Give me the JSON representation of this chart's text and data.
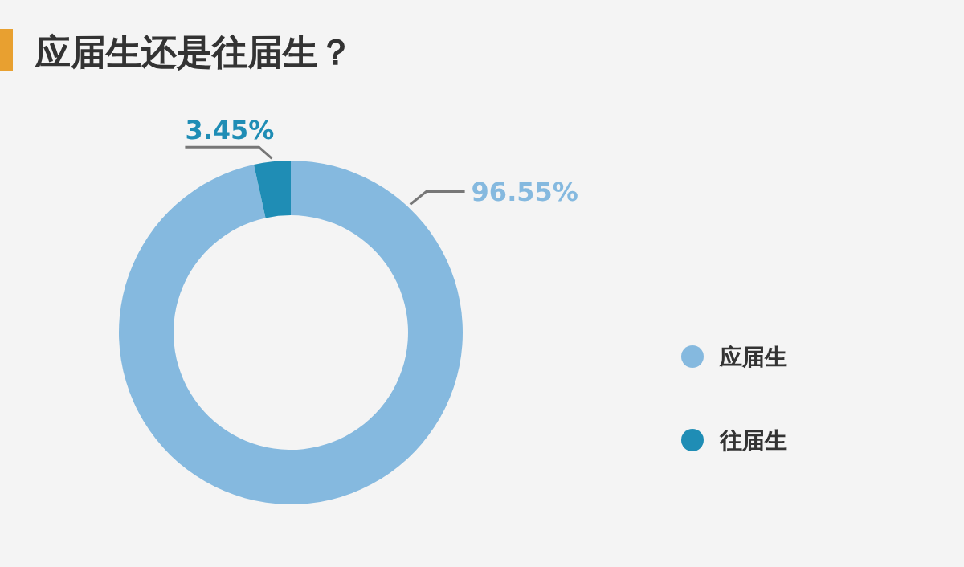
{
  "chart_data": {
    "type": "donut",
    "title": "应届生还是往届生？",
    "categories": [
      "应届生",
      "往届生"
    ],
    "values": [
      96.55,
      3.45
    ],
    "colors": [
      "#85b9df",
      "#1f8db5"
    ],
    "value_labels": [
      "96.55%",
      "3.45%"
    ],
    "legend": "right"
  }
}
